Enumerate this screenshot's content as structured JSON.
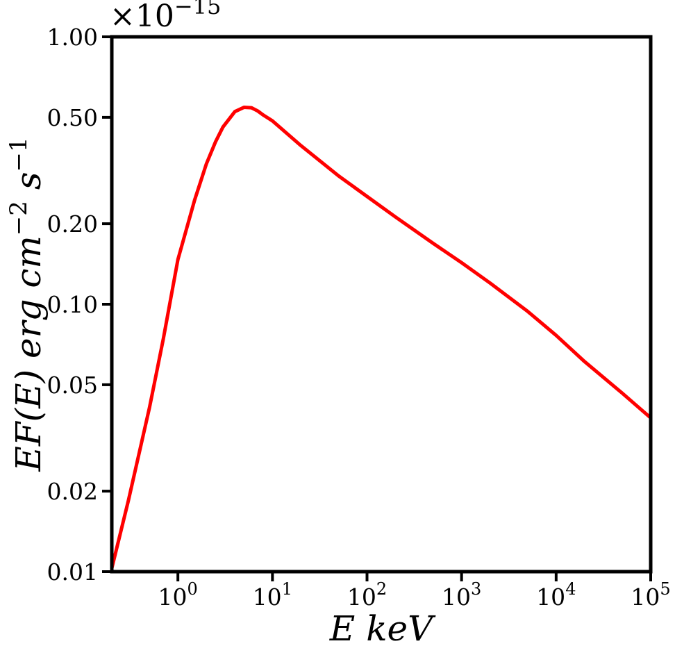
{
  "chart_data": {
    "type": "line",
    "title": "",
    "xlabel": "E keV",
    "ylabel": {
      "prefix": "EF(E) erg cm",
      "exp1": "−2",
      "mid": " s",
      "exp2": "−1"
    },
    "x_scale": "log",
    "y_scale": "log",
    "xlim": [
      0.2,
      100000
    ],
    "ylim": [
      0.01,
      1.0
    ],
    "y_multiplier": {
      "base": "×10",
      "exponent": "−15"
    },
    "x_ticks": [
      {
        "value": 1,
        "base": "10",
        "exp": "0"
      },
      {
        "value": 10,
        "base": "10",
        "exp": "1"
      },
      {
        "value": 100,
        "base": "10",
        "exp": "2"
      },
      {
        "value": 1000,
        "base": "10",
        "exp": "3"
      },
      {
        "value": 10000,
        "base": "10",
        "exp": "4"
      },
      {
        "value": 100000,
        "base": "10",
        "exp": "5"
      }
    ],
    "y_ticks": [
      {
        "value": 0.01,
        "label": "0.01"
      },
      {
        "value": 0.02,
        "label": "0.02"
      },
      {
        "value": 0.05,
        "label": "0.05"
      },
      {
        "value": 0.1,
        "label": "0.10"
      },
      {
        "value": 0.2,
        "label": "0.20"
      },
      {
        "value": 0.5,
        "label": "0.50"
      },
      {
        "value": 1.0,
        "label": "1.00"
      }
    ],
    "series": [
      {
        "color": "#ff0000",
        "x": [
          0.2,
          0.3,
          0.5,
          0.7,
          1.0,
          1.5,
          2.0,
          2.5,
          3.0,
          4.0,
          5.0,
          6.0,
          7.0,
          8.0,
          10,
          20,
          50,
          100,
          200,
          500,
          1000,
          2000,
          5000,
          10000,
          20000,
          50000,
          100000
        ],
        "y": [
          0.0103,
          0.0185,
          0.041,
          0.074,
          0.147,
          0.245,
          0.335,
          0.405,
          0.46,
          0.525,
          0.545,
          0.543,
          0.528,
          0.51,
          0.485,
          0.392,
          0.302,
          0.253,
          0.212,
          0.169,
          0.143,
          0.12,
          0.094,
          0.0765,
          0.061,
          0.0465,
          0.0376
        ]
      }
    ],
    "grid": false,
    "legend": "none"
  }
}
